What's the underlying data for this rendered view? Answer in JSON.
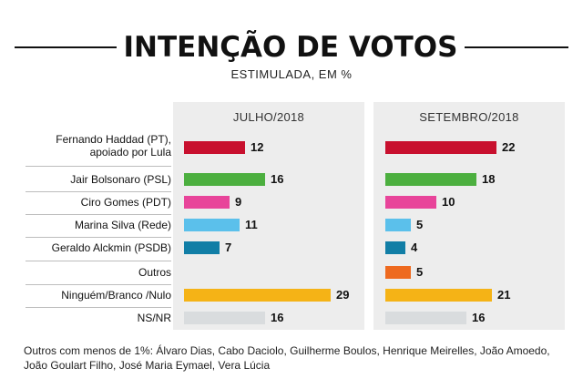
{
  "chart_data": {
    "type": "bar",
    "title": "INTENÇÃO DE VOTOS",
    "subtitle": "ESTIMULADA, EM %",
    "categories": [
      "Fernando Haddad (PT), apoiado por Lula",
      "Jair Bolsonaro (PSL)",
      "Ciro Gomes (PDT)",
      "Marina Silva (Rede)",
      "Geraldo Alckmin (PSDB)",
      "Outros",
      "Ninguém/Branco /Nulo",
      "NS/NR"
    ],
    "series": [
      {
        "name": "JULHO/2018",
        "values": [
          12,
          16,
          9,
          11,
          7,
          null,
          29,
          16
        ]
      },
      {
        "name": "SETEMBRO/2018",
        "values": [
          22,
          18,
          10,
          5,
          4,
          5,
          21,
          16
        ]
      }
    ],
    "colors": [
      "#c8102e",
      "#4caf3f",
      "#e8449a",
      "#5bc0eb",
      "#117ea6",
      "#ee6a1f",
      "#f5b316",
      "#d9dcde"
    ],
    "footnote": "Outros com menos de 1%: Álvaro Dias, Cabo Daciolo, Guilherme Boulos, Henrique Meirelles, João Amoedo, João Goulart Filho, José Maria Eymael, Vera Lúcia"
  }
}
